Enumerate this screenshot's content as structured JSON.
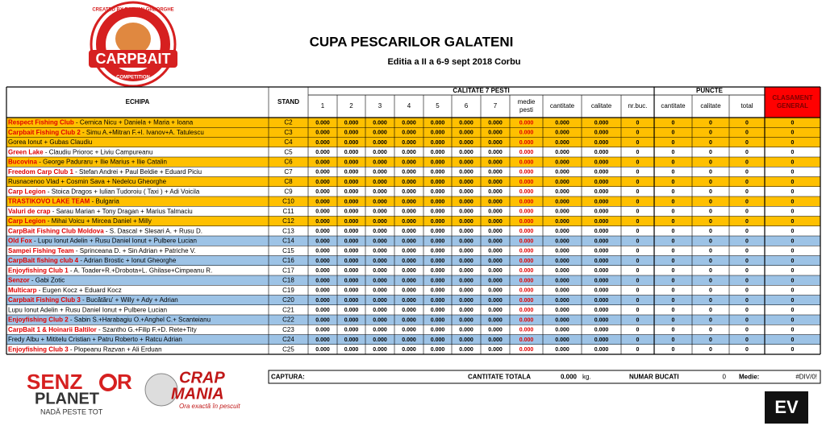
{
  "header": {
    "title": "CUPA PESCARILOR GALATENI",
    "subtitle": "Editia  a II a 6-9 sept 2018 Corbu"
  },
  "logos": {
    "carpbait": {
      "brand": "CARPBAIT",
      "credit": "CREATED BY RAZVAN GHEORGHE",
      "tag": "COMPETITION"
    },
    "senzor": {
      "top_left": "SENZ",
      "top_right": "R",
      "bottom": "PLANET",
      "slogan": "NADĂ PESTE TOT"
    },
    "crapmania": {
      "top": "CRAP",
      "bottom": "MANIA",
      "slogan": "Ora exactă în pescuit"
    },
    "ev": {
      "mark": "EV"
    }
  },
  "table": {
    "headers": {
      "team": "ECHIPA",
      "stand": "STAND",
      "quality": "CALITATE 7 PESTI",
      "fish": [
        "1",
        "2",
        "3",
        "4",
        "5",
        "6",
        "7"
      ],
      "average": "medie pesti",
      "quantity": "cantitate",
      "quality_sub": "calitate",
      "count": "nr.buc.",
      "points": "PUNCTE",
      "p_quantity": "cantitate",
      "p_quality": "calitate",
      "total": "total",
      "ranking": "CLASAMENT GENERAL"
    },
    "rows": [
      {
        "team": "Respect Fishing Club",
        "members": "- Cernica Nicu + Daniela + Maria + Ioana",
        "stand": "C2",
        "cells": [
          "0.000",
          "0.000",
          "0.000",
          "0.000",
          "0.000",
          "0.000",
          "0.000",
          "0.000",
          "0.000",
          "0.000",
          "0",
          "0",
          "0",
          "0",
          "0"
        ]
      },
      {
        "team": "Carpbait Fishing Club 2",
        "members": "-   Simu A.+Mitran F.+I. Ivanov+A. Tatulescu",
        "stand": "C3",
        "cells": [
          "0.000",
          "0.000",
          "0.000",
          "0.000",
          "0.000",
          "0.000",
          "0.000",
          "0.000",
          "0.000",
          "0.000",
          "0",
          "0",
          "0",
          "0",
          "0"
        ]
      },
      {
        "members": "Gorea Ionut + Gubas Claudiu",
        "stand": "C4",
        "cells": [
          "0.000",
          "0.000",
          "0.000",
          "0.000",
          "0.000",
          "0.000",
          "0.000",
          "0.000",
          "0.000",
          "0.000",
          "0",
          "0",
          "0",
          "0",
          "0"
        ]
      },
      {
        "team": "Green Lake",
        "members": "- Claudiu Prioroc + Liviu Campureanu",
        "stand": "C5",
        "cells": [
          "0.000",
          "0.000",
          "0.000",
          "0.000",
          "0.000",
          "0.000",
          "0.000",
          "0.000",
          "0.000",
          "0.000",
          "0",
          "0",
          "0",
          "0",
          "0"
        ]
      },
      {
        "team": "Bucovina",
        "members": "- George Paduraru + Ilie Marius + Ilie Catalin",
        "stand": "C6",
        "cells": [
          "0.000",
          "0.000",
          "0.000",
          "0.000",
          "0.000",
          "0.000",
          "0.000",
          "0.000",
          "0.000",
          "0.000",
          "0",
          "0",
          "0",
          "0",
          "0"
        ]
      },
      {
        "team": "Freedom Carp Club 1",
        "members": "- Stefan Andrei + Paul Beldie + Eduard Piciu",
        "stand": "C7",
        "cells": [
          "0.000",
          "0.000",
          "0.000",
          "0.000",
          "0.000",
          "0.000",
          "0.000",
          "0.000",
          "0.000",
          "0.000",
          "0",
          "0",
          "0",
          "0",
          "0"
        ]
      },
      {
        "members": "Rusnacenoo Vlad + Cosmin Sava + Nedelcu Gheorghe",
        "stand": "C8",
        "cells": [
          "0.000",
          "0.000",
          "0.000",
          "0.000",
          "0.000",
          "0.000",
          "0.000",
          "0.000",
          "0.000",
          "0.000",
          "0",
          "0",
          "0",
          "0",
          "0"
        ]
      },
      {
        "team": "Carp Legion",
        "members": "- Stoica Dragos + Iulian Tudoroiu ( Taxi ) + Adi Voicila",
        "stand": "C9",
        "cells": [
          "0.000",
          "0.000",
          "0.000",
          "0.000",
          "0.000",
          "0.000",
          "0.000",
          "0.000",
          "0.000",
          "0.000",
          "0",
          "0",
          "0",
          "0",
          "0"
        ]
      },
      {
        "team": "TRASTIKOVO LAKE TEAM",
        "members": "- Bulgaria",
        "stand": "C10",
        "cells": [
          "0.000",
          "0.000",
          "0.000",
          "0.000",
          "0.000",
          "0.000",
          "0.000",
          "0.000",
          "0.000",
          "0.000",
          "0",
          "0",
          "0",
          "0",
          "0"
        ]
      },
      {
        "team": "Valuri de crap",
        "members": "- Sarau Marian + Tony Dragan + Marius Talmaciu",
        "stand": "C11",
        "cells": [
          "0.000",
          "0.000",
          "0.000",
          "0.000",
          "0.000",
          "0.000",
          "0.000",
          "0.000",
          "0.000",
          "0.000",
          "0",
          "0",
          "0",
          "0",
          "0"
        ]
      },
      {
        "team": "Carp Legion",
        "members": "- Mihai Voicu + Mircea Daniel + Milly",
        "stand": "C12",
        "cells": [
          "0.000",
          "0.000",
          "0.000",
          "0.000",
          "0.000",
          "0.000",
          "0.000",
          "0.000",
          "0.000",
          "0.000",
          "0",
          "0",
          "0",
          "0",
          "0"
        ]
      },
      {
        "team": "CarpBait Fishing Club Moldova",
        "members": "- S. Dascal + Slesari A. + Rusu D.",
        "stand": "C13",
        "cells": [
          "0.000",
          "0.000",
          "0.000",
          "0.000",
          "0.000",
          "0.000",
          "0.000",
          "0.000",
          "0.000",
          "0.000",
          "0",
          "0",
          "0",
          "0",
          "0"
        ]
      },
      {
        "team": "Old Fox",
        "members": " -  Lupu Ionut Adelin + Rusu Daniel Ionut + Pulbere Lucian",
        "stand": "C14",
        "cells": [
          "0.000",
          "0.000",
          "0.000",
          "0.000",
          "0.000",
          "0.000",
          "0.000",
          "0.000",
          "0.000",
          "0.000",
          "0",
          "0",
          "0",
          "0",
          "0"
        ]
      },
      {
        "team": "Sampei Fishing Team",
        "members": "- Sprinceana D. + Sin Adrian + Patriche V.",
        "stand": "C15",
        "cells": [
          "0.000",
          "0.000",
          "0.000",
          "0.000",
          "0.000",
          "0.000",
          "0.000",
          "0.000",
          "0.000",
          "0.000",
          "0",
          "0",
          "0",
          "0",
          "0"
        ]
      },
      {
        "team": "CarpBait fishing club 4",
        "members": "- Adrian Brostic + Ionut Gheorghe",
        "stand": "C16",
        "cells": [
          "0.000",
          "0.000",
          "0.000",
          "0.000",
          "0.000",
          "0.000",
          "0.000",
          "0.000",
          "0.000",
          "0.000",
          "0",
          "0",
          "0",
          "0",
          "0"
        ]
      },
      {
        "team": "Enjoyfishing Club 1",
        "members": "- A. Toader+R.+Drobota+L. Ghilase+Cimpeanu R.",
        "stand": "C17",
        "cells": [
          "0.000",
          "0.000",
          "0.000",
          "0.000",
          "0.000",
          "0.000",
          "0.000",
          "0.000",
          "0.000",
          "0.000",
          "0",
          "0",
          "0",
          "0",
          "0"
        ]
      },
      {
        "team": "Senzor",
        "members": "- Gabi Zotic",
        "stand": "C18",
        "cells": [
          "0.000",
          "0.000",
          "0.000",
          "0.000",
          "0.000",
          "0.000",
          "0.000",
          "0.000",
          "0.000",
          "0.000",
          "0",
          "0",
          "0",
          "0",
          "0"
        ]
      },
      {
        "team": "Multicarp",
        "members": "- Eugen Kocz + Eduard Kocz",
        "stand": "C19",
        "cells": [
          "0.000",
          "0.000",
          "0.000",
          "0.000",
          "0.000",
          "0.000",
          "0.000",
          "0.000",
          "0.000",
          "0.000",
          "0",
          "0",
          "0",
          "0",
          "0"
        ]
      },
      {
        "team": "Carpbait Fishing Club 3",
        "members": "- Bucătăru' + Willy + Ady + Adrian",
        "stand": "C20",
        "cells": [
          "0.000",
          "0.000",
          "0.000",
          "0.000",
          "0.000",
          "0.000",
          "0.000",
          "0.000",
          "0.000",
          "0.000",
          "0",
          "0",
          "0",
          "0",
          "0"
        ]
      },
      {
        "members": "Lupu Ionut Adelin + Rusu Daniel Ionut + Pulbere Lucian",
        "stand": "C21",
        "cells": [
          "0.000",
          "0.000",
          "0.000",
          "0.000",
          "0.000",
          "0.000",
          "0.000",
          "0.000",
          "0.000",
          "0.000",
          "0",
          "0",
          "0",
          "0",
          "0"
        ]
      },
      {
        "team": "Enjoyfishing Club 2",
        "members": "- Sabin S.+Harabagiu O.+Anghel C.+ Scanteianu",
        "stand": "C22",
        "cells": [
          "0.000",
          "0.000",
          "0.000",
          "0.000",
          "0.000",
          "0.000",
          "0.000",
          "0.000",
          "0.000",
          "0.000",
          "0",
          "0",
          "0",
          "0",
          "0"
        ]
      },
      {
        "team": "CarpBait 1 & Hoinarii Baltilor",
        "members": "- Szantho G.+Filip F.+D. Rete+Tity",
        "stand": "C23",
        "cells": [
          "0.000",
          "0.000",
          "0.000",
          "0.000",
          "0.000",
          "0.000",
          "0.000",
          "0.000",
          "0.000",
          "0.000",
          "0",
          "0",
          "0",
          "0",
          "0"
        ]
      },
      {
        "members": "Fredy Albu + Mititelu Cristian + Patru Roberto + Ratcu Adrian",
        "stand": "C24",
        "cells": [
          "0.000",
          "0.000",
          "0.000",
          "0.000",
          "0.000",
          "0.000",
          "0.000",
          "0.000",
          "0.000",
          "0.000",
          "0",
          "0",
          "0",
          "0",
          "0"
        ]
      },
      {
        "team": "Enjoyfishing Club 3",
        "members": "- Plopeanu Razvan + Ali Erduan",
        "stand": "C25",
        "cells": [
          "0.000",
          "0.000",
          "0.000",
          "0.000",
          "0.000",
          "0.000",
          "0.000",
          "0.000",
          "0.000",
          "0.000",
          "0",
          "0",
          "0",
          "0",
          "0"
        ]
      }
    ]
  },
  "summary": {
    "catch_label": "CAPTURA:",
    "total_label": "CANTITATE TOTALA",
    "total_value": "0.000",
    "unit": "kg.",
    "count_label": "NUMAR BUCATI",
    "count_value": "0",
    "average_label": "Medie:",
    "average_value": "#DIV/0!"
  }
}
